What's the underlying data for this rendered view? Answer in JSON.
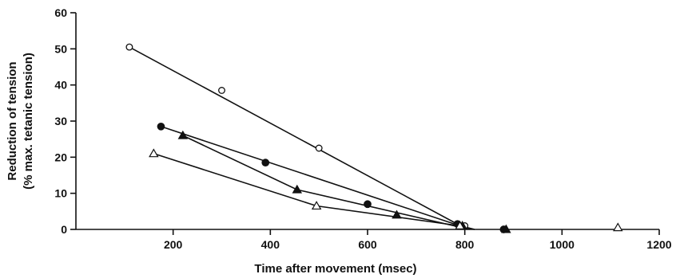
{
  "chart_data": {
    "type": "scatter",
    "title": "",
    "xlabel": "Time after movement (msec)",
    "ylabel_line1": "Reduction of tension",
    "ylabel_line2": "(% max. tetanic tension)",
    "xlim": [
      0,
      1200
    ],
    "ylim": [
      0,
      60
    ],
    "xticks": [
      200,
      400,
      600,
      800,
      1000,
      1200
    ],
    "yticks": [
      0,
      10,
      20,
      30,
      40,
      50,
      60
    ],
    "grid": false,
    "series": [
      {
        "marker": "open-circle",
        "points": [
          [
            110,
            50.5
          ],
          [
            300,
            38.5
          ],
          [
            500,
            22.5
          ],
          [
            800,
            1
          ]
        ],
        "fit_line": [
          [
            110,
            50.5
          ],
          [
            805,
            0
          ]
        ]
      },
      {
        "marker": "filled-circle",
        "points": [
          [
            175,
            28.5
          ],
          [
            390,
            18.5
          ],
          [
            600,
            7
          ],
          [
            785,
            1.5
          ],
          [
            880,
            0
          ]
        ],
        "fit_line": [
          [
            175,
            28.5
          ],
          [
            790,
            1
          ],
          [
            820,
            0
          ]
        ]
      },
      {
        "marker": "filled-triangle",
        "points": [
          [
            220,
            26
          ],
          [
            455,
            11
          ],
          [
            660,
            4
          ],
          [
            795,
            1
          ],
          [
            885,
            0
          ]
        ],
        "fit_line": [
          [
            220,
            26
          ],
          [
            455,
            11
          ],
          [
            810,
            0
          ]
        ]
      },
      {
        "marker": "open-triangle",
        "points": [
          [
            160,
            21
          ],
          [
            495,
            6.5
          ],
          [
            790,
            1
          ],
          [
            1115,
            0.5
          ]
        ],
        "fit_line": [
          [
            160,
            21
          ],
          [
            495,
            6.5
          ],
          [
            790,
            1
          ],
          [
            820,
            0
          ]
        ]
      }
    ]
  }
}
